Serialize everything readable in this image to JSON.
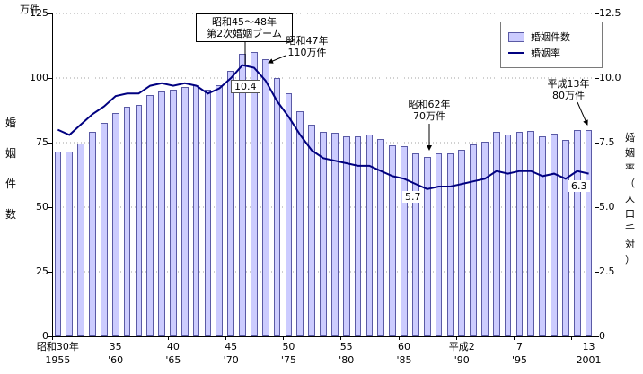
{
  "chart_data": {
    "type": "bar+line",
    "years": [
      1955,
      1956,
      1957,
      1958,
      1959,
      1960,
      1961,
      1962,
      1963,
      1964,
      1965,
      1966,
      1967,
      1968,
      1969,
      1970,
      1971,
      1972,
      1973,
      1974,
      1975,
      1976,
      1977,
      1978,
      1979,
      1980,
      1981,
      1982,
      1983,
      1984,
      1985,
      1986,
      1987,
      1988,
      1989,
      1990,
      1991,
      1992,
      1993,
      1994,
      1995,
      1996,
      1997,
      1998,
      1999,
      2000,
      2001
    ],
    "series": [
      {
        "name": "婚姻件数",
        "type": "bar",
        "unit": "万件",
        "values": [
          71.4,
          71.5,
          74.7,
          79.1,
          82.7,
          86.6,
          88.9,
          89.5,
          93.5,
          94.7,
          95.4,
          96.4,
          97.1,
          95.5,
          97.2,
          102.9,
          109.3,
          110.0,
          107.2,
          100.0,
          94.2,
          87.1,
          82.1,
          79.3,
          78.8,
          77.5,
          77.6,
          78.1,
          76.3,
          73.9,
          73.6,
          71.0,
          69.6,
          70.8,
          70.8,
          72.2,
          74.2,
          75.4,
          79.3,
          78.3,
          79.2,
          79.6,
          77.6,
          78.4,
          76.2,
          79.8,
          80.0
        ]
      },
      {
        "name": "婚姻率",
        "type": "line",
        "unit": "人口千対",
        "values": [
          8.0,
          7.8,
          8.2,
          8.6,
          8.9,
          9.3,
          9.4,
          9.4,
          9.7,
          9.8,
          9.7,
          9.8,
          9.7,
          9.4,
          9.6,
          10.0,
          10.5,
          10.4,
          9.9,
          9.1,
          8.5,
          7.8,
          7.2,
          6.9,
          6.8,
          6.7,
          6.6,
          6.6,
          6.4,
          6.2,
          6.1,
          5.9,
          5.7,
          5.8,
          5.8,
          5.9,
          6.0,
          6.1,
          6.4,
          6.3,
          6.4,
          6.4,
          6.2,
          6.3,
          6.1,
          6.4,
          6.3
        ]
      }
    ],
    "left_axis": {
      "label": "婚姻件数",
      "unit_label": "万件",
      "min": 0,
      "max": 125,
      "ticks": [
        0,
        25,
        50,
        75,
        100,
        125
      ],
      "tick_labels": [
        "0",
        "25",
        "50",
        "75",
        "100",
        "125"
      ]
    },
    "right_axis": {
      "label": "婚姻率（人口千対）",
      "min": 0,
      "max": 12.5,
      "ticks": [
        0,
        2.5,
        5,
        7.5,
        10,
        12.5
      ],
      "tick_labels": [
        "0",
        "2.5",
        "5.0",
        "7.5",
        "10.0",
        "12.5"
      ]
    },
    "x_ticks": [
      {
        "index": 0,
        "era": "昭和30年",
        "year": "1955"
      },
      {
        "index": 5,
        "era": "35",
        "year": "'60"
      },
      {
        "index": 10,
        "era": "40",
        "year": "'65"
      },
      {
        "index": 15,
        "era": "45",
        "year": "'70"
      },
      {
        "index": 20,
        "era": "50",
        "year": "'75"
      },
      {
        "index": 25,
        "era": "55",
        "year": "'80"
      },
      {
        "index": 30,
        "era": "60",
        "year": "'85"
      },
      {
        "index": 35,
        "era": "平成2",
        "year": "'90"
      },
      {
        "index": 40,
        "era": "7",
        "year": "'95"
      },
      {
        "index": 46,
        "era": "13",
        "year": "2001"
      }
    ],
    "grid": "horizontal-dotted",
    "legend_position": "top-right",
    "annotations": {
      "boom": {
        "line1": "昭和45〜48年",
        "line2": "第2次婚姻ブーム"
      },
      "showa47": {
        "line1": "昭和47年",
        "line2": "110万件"
      },
      "peak_rate": "10.4",
      "showa62": {
        "line1": "昭和62年",
        "line2": "70万件"
      },
      "low_rate": "5.7",
      "heisei13": {
        "line1": "平成13年",
        "line2": "80万件"
      },
      "last_rate": "6.3"
    },
    "colors": {
      "bar_fill": "#ccccff",
      "bar_border": "#5a5aa5",
      "line": "#000080",
      "grid": "#a0a0a0"
    }
  }
}
